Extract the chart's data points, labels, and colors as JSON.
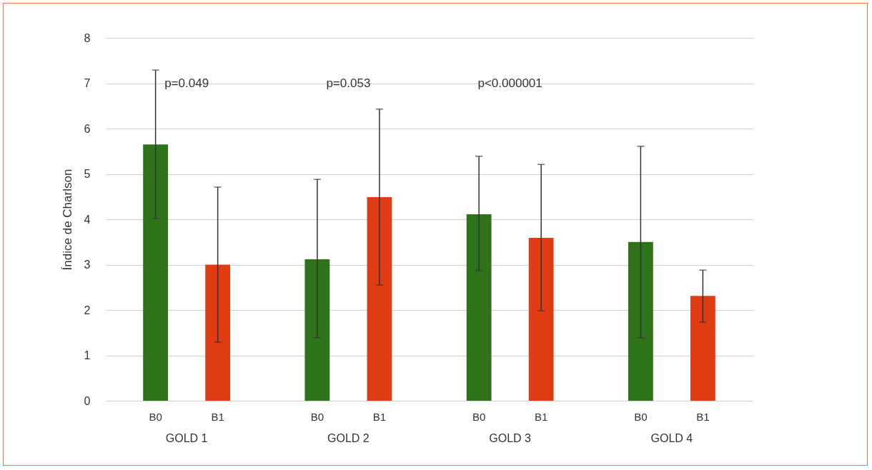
{
  "chart_data": {
    "type": "bar",
    "ylabel": "Índice de Charlson",
    "categories": [
      "GOLD 1",
      "GOLD 2",
      "GOLD 3",
      "GOLD 4"
    ],
    "series": [
      {
        "name": "B0",
        "color": "#2e7219",
        "values": [
          5.65,
          3.12,
          4.11,
          3.5
        ],
        "errors": [
          [
            4.02,
            7.29
          ],
          [
            1.39,
            4.88
          ],
          [
            2.87,
            5.39
          ],
          [
            1.39,
            5.61
          ]
        ]
      },
      {
        "name": "B1",
        "color": "#e03c14",
        "values": [
          3.0,
          4.49,
          3.59,
          2.31
        ],
        "errors": [
          [
            1.29,
            4.71
          ],
          [
            2.55,
            6.43
          ],
          [
            1.98,
            5.21
          ],
          [
            1.73,
            2.88
          ]
        ]
      }
    ],
    "ylim": [
      0,
      8
    ],
    "yticks": [
      0,
      1,
      2,
      3,
      4,
      5,
      6,
      7,
      8
    ],
    "grid": "y",
    "legend": false,
    "annotations": [
      "p=0.049",
      "p=0.053",
      "p<0.000001"
    ]
  }
}
